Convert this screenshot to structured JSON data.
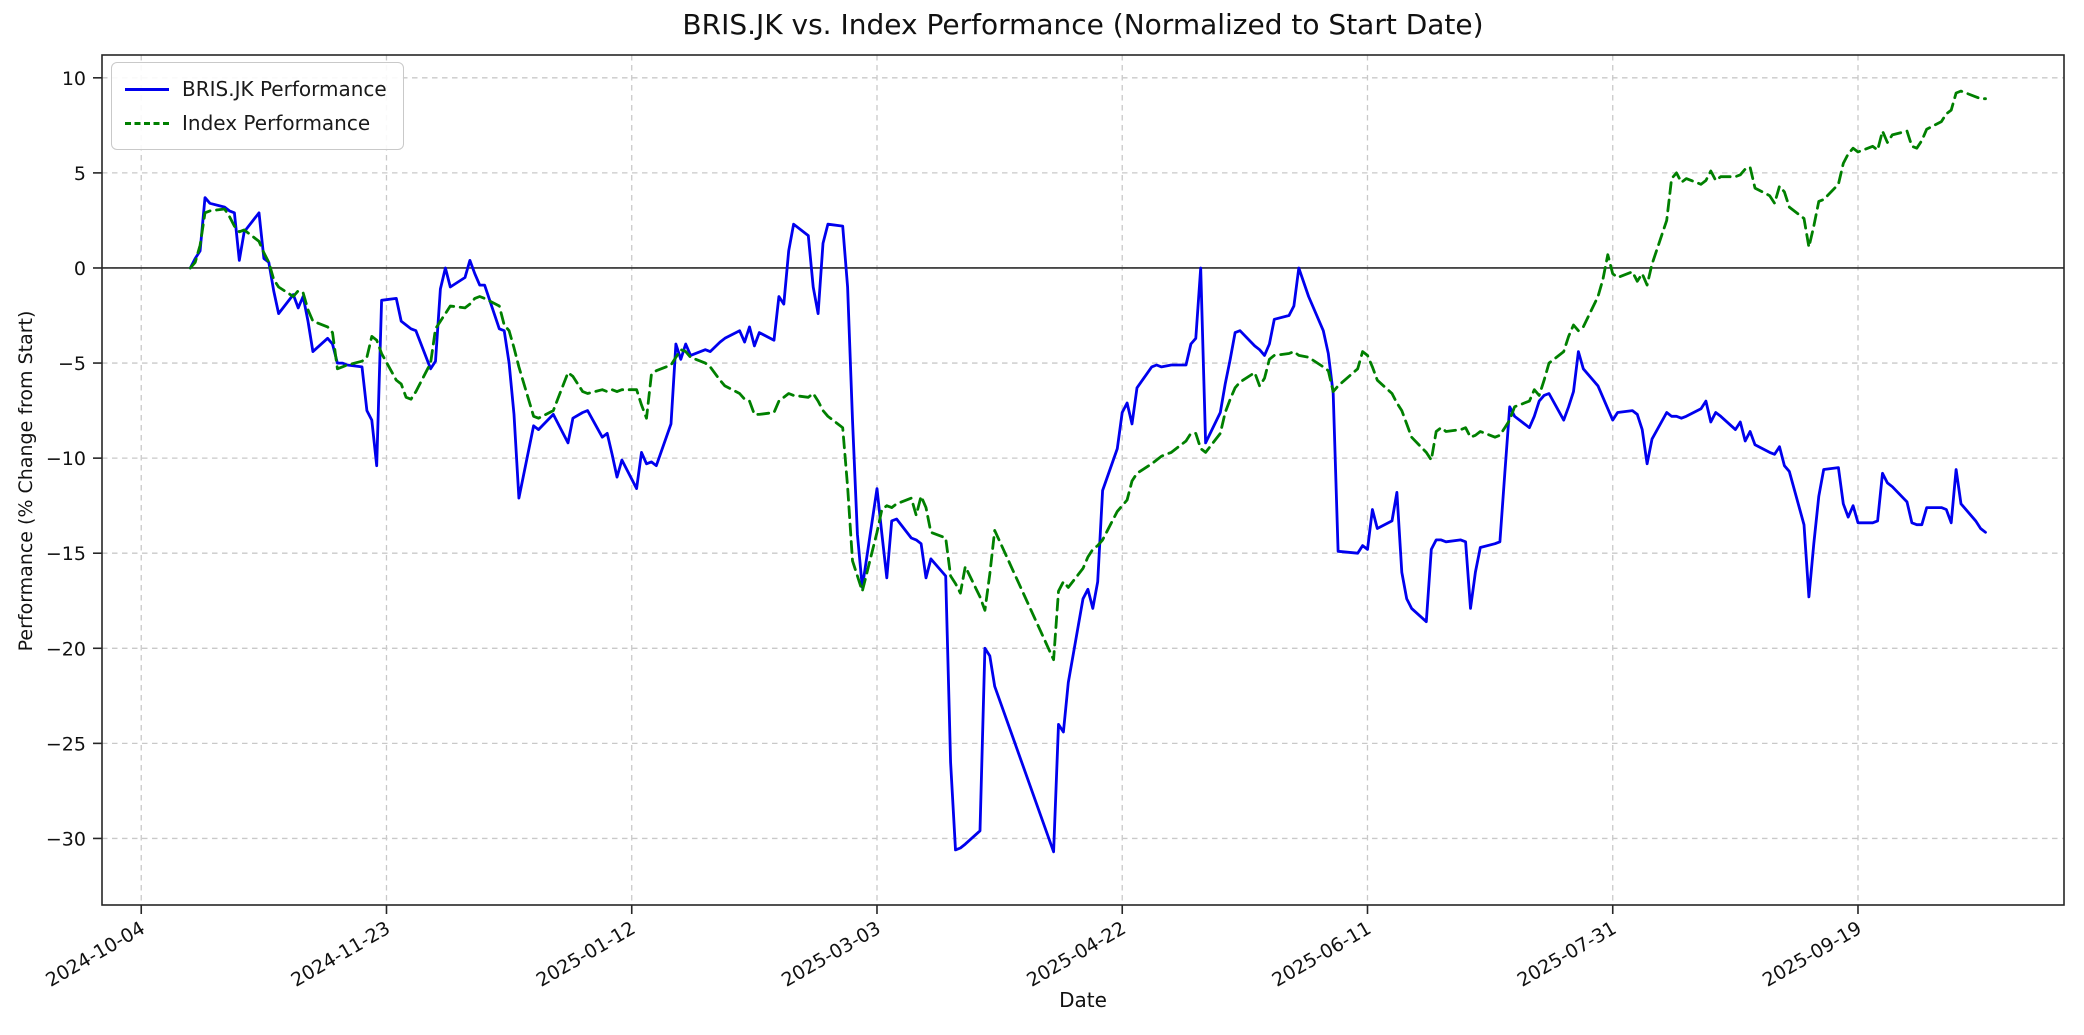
{
  "title": "BRIS.JK vs. Index Performance (Normalized to Start Date)",
  "axes": {
    "xlabel": "Date",
    "ylabel": "Performance (% Change from Start)"
  },
  "legend": {
    "items": [
      {
        "label": "BRIS.JK Performance",
        "color": "#0000ee",
        "style": "solid"
      },
      {
        "label": "Index Performance",
        "color": "#008000",
        "style": "dashed"
      }
    ]
  },
  "chart_data": {
    "type": "line",
    "title": "BRIS.JK vs. Index Performance (Normalized to Start Date)",
    "xlabel": "Date",
    "ylabel": "Performance (% Change from Start)",
    "grid": true,
    "legend_position": "upper-left",
    "zero_line": true,
    "xlim": [
      "2024-09-26",
      "2025-10-31"
    ],
    "ylim": [
      -33.5,
      11.2
    ],
    "x_ticks": [
      "2024-10-04",
      "2024-11-23",
      "2025-01-12",
      "2025-03-03",
      "2025-04-22",
      "2025-06-11",
      "2025-07-31",
      "2025-09-19"
    ],
    "y_ticks": [
      10,
      5,
      0,
      -5,
      -10,
      -15,
      -20,
      -25,
      -30
    ],
    "y_tick_labels": [
      "10",
      "5",
      "0",
      "−5",
      "−10",
      "−15",
      "−20",
      "−25",
      "−30"
    ],
    "x": [
      "2024-10-14",
      "2024-10-15",
      "2024-10-16",
      "2024-10-17",
      "2024-10-18",
      "2024-10-21",
      "2024-10-22",
      "2024-10-23",
      "2024-10-24",
      "2024-10-25",
      "2024-10-28",
      "2024-10-29",
      "2024-10-30",
      "2024-10-31",
      "2024-11-01",
      "2024-11-04",
      "2024-11-05",
      "2024-11-06",
      "2024-11-07",
      "2024-11-08",
      "2024-11-11",
      "2024-11-12",
      "2024-11-13",
      "2024-11-14",
      "2024-11-15",
      "2024-11-18",
      "2024-11-19",
      "2024-11-20",
      "2024-11-21",
      "2024-11-22",
      "2024-11-25",
      "2024-11-26",
      "2024-11-27",
      "2024-11-28",
      "2024-11-29",
      "2024-12-02",
      "2024-12-03",
      "2024-12-04",
      "2024-12-05",
      "2024-12-06",
      "2024-12-09",
      "2024-12-10",
      "2024-12-11",
      "2024-12-12",
      "2024-12-13",
      "2024-12-16",
      "2024-12-17",
      "2024-12-18",
      "2024-12-19",
      "2024-12-20",
      "2024-12-23",
      "2024-12-24",
      "2024-12-27",
      "2024-12-30",
      "2024-12-31",
      "2025-01-02",
      "2025-01-03",
      "2025-01-06",
      "2025-01-07",
      "2025-01-08",
      "2025-01-09",
      "2025-01-10",
      "2025-01-13",
      "2025-01-14",
      "2025-01-15",
      "2025-01-16",
      "2025-01-17",
      "2025-01-20",
      "2025-01-21",
      "2025-01-22",
      "2025-01-23",
      "2025-01-24",
      "2025-01-27",
      "2025-01-28",
      "2025-01-30",
      "2025-01-31",
      "2025-02-03",
      "2025-02-04",
      "2025-02-05",
      "2025-02-06",
      "2025-02-07",
      "2025-02-10",
      "2025-02-11",
      "2025-02-12",
      "2025-02-13",
      "2025-02-14",
      "2025-02-17",
      "2025-02-18",
      "2025-02-19",
      "2025-02-20",
      "2025-02-21",
      "2025-02-24",
      "2025-02-25",
      "2025-02-26",
      "2025-02-27",
      "2025-02-28",
      "2025-03-03",
      "2025-03-04",
      "2025-03-05",
      "2025-03-06",
      "2025-03-07",
      "2025-03-10",
      "2025-03-11",
      "2025-03-12",
      "2025-03-13",
      "2025-03-14",
      "2025-03-17",
      "2025-03-18",
      "2025-03-19",
      "2025-03-20",
      "2025-03-21",
      "2025-03-24",
      "2025-03-25",
      "2025-03-26",
      "2025-03-27",
      "2025-04-08",
      "2025-04-09",
      "2025-04-10",
      "2025-04-11",
      "2025-04-14",
      "2025-04-15",
      "2025-04-16",
      "2025-04-17",
      "2025-04-18",
      "2025-04-21",
      "2025-04-22",
      "2025-04-23",
      "2025-04-24",
      "2025-04-25",
      "2025-04-28",
      "2025-04-29",
      "2025-04-30",
      "2025-05-02",
      "2025-05-05",
      "2025-05-06",
      "2025-05-07",
      "2025-05-08",
      "2025-05-09",
      "2025-05-12",
      "2025-05-13",
      "2025-05-14",
      "2025-05-15",
      "2025-05-16",
      "2025-05-19",
      "2025-05-20",
      "2025-05-21",
      "2025-05-22",
      "2025-05-23",
      "2025-05-26",
      "2025-05-27",
      "2025-05-28",
      "2025-05-30",
      "2025-06-02",
      "2025-06-03",
      "2025-06-04",
      "2025-06-05",
      "2025-06-09",
      "2025-06-10",
      "2025-06-11",
      "2025-06-12",
      "2025-06-13",
      "2025-06-16",
      "2025-06-17",
      "2025-06-18",
      "2025-06-19",
      "2025-06-20",
      "2025-06-23",
      "2025-06-24",
      "2025-06-25",
      "2025-06-26",
      "2025-06-27",
      "2025-06-30",
      "2025-07-01",
      "2025-07-02",
      "2025-07-03",
      "2025-07-04",
      "2025-07-07",
      "2025-07-08",
      "2025-07-09",
      "2025-07-10",
      "2025-07-11",
      "2025-07-14",
      "2025-07-15",
      "2025-07-16",
      "2025-07-17",
      "2025-07-18",
      "2025-07-21",
      "2025-07-22",
      "2025-07-23",
      "2025-07-24",
      "2025-07-25",
      "2025-07-28",
      "2025-07-29",
      "2025-07-30",
      "2025-07-31",
      "2025-08-01",
      "2025-08-04",
      "2025-08-05",
      "2025-08-06",
      "2025-08-07",
      "2025-08-08",
      "2025-08-11",
      "2025-08-12",
      "2025-08-13",
      "2025-08-14",
      "2025-08-15",
      "2025-08-18",
      "2025-08-19",
      "2025-08-20",
      "2025-08-21",
      "2025-08-22",
      "2025-08-25",
      "2025-08-26",
      "2025-08-27",
      "2025-08-28",
      "2025-08-29",
      "2025-09-01",
      "2025-09-02",
      "2025-09-03",
      "2025-09-04",
      "2025-09-05",
      "2025-09-08",
      "2025-09-09",
      "2025-09-10",
      "2025-09-11",
      "2025-09-12",
      "2025-09-15",
      "2025-09-16",
      "2025-09-17",
      "2025-09-18",
      "2025-09-19",
      "2025-09-22",
      "2025-09-23",
      "2025-09-24",
      "2025-09-25",
      "2025-09-26",
      "2025-09-29",
      "2025-09-30",
      "2025-10-01",
      "2025-10-02",
      "2025-10-03",
      "2025-10-06",
      "2025-10-07",
      "2025-10-08",
      "2025-10-09",
      "2025-10-10",
      "2025-10-13",
      "2025-10-14",
      "2025-10-15"
    ],
    "series": [
      {
        "name": "BRIS.JK Performance",
        "color": "#0000ee",
        "line_style": "solid",
        "values": [
          0.0,
          0.5,
          0.9,
          3.7,
          3.4,
          3.2,
          3.0,
          2.9,
          0.4,
          1.9,
          2.9,
          0.5,
          0.3,
          -1.2,
          -2.4,
          -1.4,
          -2.1,
          -1.5,
          -2.8,
          -4.4,
          -3.7,
          -4.0,
          -5.0,
          -5.0,
          -5.1,
          -5.2,
          -7.5,
          -8.0,
          -10.4,
          -1.7,
          -1.6,
          -2.8,
          -3.0,
          -3.2,
          -3.3,
          -5.3,
          -4.9,
          -1.1,
          0.0,
          -1.0,
          -0.5,
          0.4,
          -0.3,
          -0.9,
          -0.9,
          -3.2,
          -3.3,
          -5.0,
          -7.7,
          -12.1,
          -8.3,
          -8.5,
          -7.7,
          -9.2,
          -7.9,
          -7.6,
          -7.5,
          -8.9,
          -8.7,
          -9.8,
          -11.0,
          -10.1,
          -11.6,
          -9.7,
          -10.3,
          -10.2,
          -10.4,
          -8.2,
          -4.0,
          -4.8,
          -4.0,
          -4.6,
          -4.3,
          -4.4,
          -3.9,
          -3.7,
          -3.3,
          -3.9,
          -3.1,
          -4.1,
          -3.4,
          -3.8,
          -1.5,
          -1.9,
          0.9,
          2.3,
          1.7,
          -1.0,
          -2.4,
          1.3,
          2.3,
          2.2,
          -1.0,
          -8.0,
          -14.0,
          -16.8,
          -11.6,
          -14.0,
          -16.3,
          -13.3,
          -13.2,
          -14.2,
          -14.3,
          -14.5,
          -16.3,
          -15.3,
          -16.2,
          -26.0,
          -30.6,
          -30.5,
          -30.3,
          -29.6,
          -20.0,
          -20.4,
          -22.0,
          -30.7,
          -24.0,
          -24.4,
          -21.8,
          -17.4,
          -16.9,
          -17.9,
          -16.5,
          -11.7,
          -9.5,
          -7.6,
          -7.1,
          -8.2,
          -6.3,
          -5.2,
          -5.1,
          -5.2,
          -5.1,
          -5.1,
          -4.0,
          -3.7,
          0.0,
          -9.2,
          -7.6,
          -6.1,
          -4.8,
          -3.4,
          -3.3,
          -4.1,
          -4.3,
          -4.6,
          -4.0,
          -2.7,
          -2.5,
          -2.0,
          0.0,
          -1.5,
          -3.3,
          -4.5,
          -6.6,
          -14.9,
          -15.0,
          -14.6,
          -14.8,
          -12.7,
          -13.7,
          -13.3,
          -11.8,
          -16.0,
          -17.4,
          -17.9,
          -18.6,
          -14.8,
          -14.3,
          -14.3,
          -14.4,
          -14.3,
          -14.4,
          -17.9,
          -16.0,
          -14.7,
          -14.5,
          -14.4,
          -10.8,
          -7.3,
          -7.8,
          -8.4,
          -7.8,
          -7.0,
          -6.7,
          -6.6,
          -8.0,
          -7.3,
          -6.5,
          -4.4,
          -5.3,
          -6.2,
          -6.8,
          -7.4,
          -8.0,
          -7.6,
          -7.5,
          -7.7,
          -8.5,
          -10.3,
          -9.0,
          -7.6,
          -7.8,
          -7.8,
          -7.9,
          -7.8,
          -7.4,
          -7.0,
          -8.1,
          -7.6,
          -7.8,
          -8.5,
          -8.1,
          -9.1,
          -8.6,
          -9.3,
          -9.7,
          -9.8,
          -9.4,
          -10.4,
          -10.7,
          -13.5,
          -17.3,
          -14.5,
          -12.0,
          -10.6,
          -10.5,
          -12.4,
          -13.1,
          -12.5,
          -13.4,
          -13.4,
          -13.3,
          -10.8,
          -11.3,
          -11.5,
          -12.3,
          -13.4,
          -13.5,
          -13.5,
          -12.6,
          -12.6,
          -12.7,
          -13.4,
          -10.6,
          -12.4,
          -13.3,
          -13.7,
          -13.9
        ]
      },
      {
        "name": "Index Performance",
        "color": "#008000",
        "line_style": "dashed",
        "values": [
          0.0,
          0.3,
          1.2,
          2.9,
          3.0,
          3.1,
          2.7,
          2.2,
          1.9,
          2.0,
          1.4,
          0.8,
          0.3,
          -0.6,
          -1.0,
          -1.5,
          -1.2,
          -1.3,
          -2.2,
          -2.8,
          -3.1,
          -3.4,
          -5.3,
          -5.2,
          -5.1,
          -4.9,
          -4.7,
          -3.6,
          -3.8,
          -4.5,
          -5.9,
          -6.1,
          -6.8,
          -6.9,
          -6.5,
          -5.0,
          -3.2,
          -2.8,
          -2.4,
          -2.0,
          -2.1,
          -1.9,
          -1.6,
          -1.5,
          -1.6,
          -2.0,
          -3.0,
          -3.3,
          -4.2,
          -5.2,
          -7.8,
          -7.9,
          -7.5,
          -5.5,
          -5.7,
          -6.5,
          -6.6,
          -6.4,
          -6.5,
          -6.4,
          -6.5,
          -6.4,
          -6.4,
          -7.2,
          -7.9,
          -5.6,
          -5.4,
          -5.1,
          -4.7,
          -4.3,
          -4.4,
          -4.7,
          -5.0,
          -5.2,
          -5.9,
          -6.2,
          -6.6,
          -6.9,
          -7.0,
          -7.7,
          -7.7,
          -7.6,
          -7.0,
          -6.8,
          -6.6,
          -6.7,
          -6.8,
          -6.6,
          -7.0,
          -7.5,
          -7.8,
          -8.4,
          -11.5,
          -15.4,
          -16.2,
          -17.0,
          -13.9,
          -12.7,
          -12.5,
          -12.6,
          -12.4,
          -12.1,
          -13.0,
          -12.0,
          -12.6,
          -13.9,
          -14.2,
          -16.2,
          -16.6,
          -17.1,
          -15.7,
          -17.3,
          -18.0,
          -16.1,
          -13.8,
          -20.6,
          -17.0,
          -16.5,
          -16.8,
          -15.8,
          -15.2,
          -14.8,
          -14.6,
          -14.3,
          -12.8,
          -12.5,
          -12.2,
          -11.2,
          -10.8,
          -10.3,
          -10.1,
          -9.9,
          -9.7,
          -9.1,
          -8.7,
          -8.7,
          -9.5,
          -9.7,
          -8.7,
          -7.6,
          -6.9,
          -6.3,
          -6.0,
          -5.5,
          -6.2,
          -5.8,
          -4.8,
          -4.6,
          -4.5,
          -4.4,
          -4.6,
          -4.7,
          -5.2,
          -5.4,
          -6.5,
          -6.2,
          -5.3,
          -4.4,
          -4.6,
          -5.2,
          -5.9,
          -6.6,
          -7.1,
          -7.5,
          -8.2,
          -8.9,
          -9.7,
          -10.1,
          -8.6,
          -8.4,
          -8.6,
          -8.5,
          -8.4,
          -8.9,
          -8.8,
          -8.6,
          -8.9,
          -8.8,
          -8.4,
          -8.0,
          -7.3,
          -7.0,
          -6.4,
          -6.7,
          -5.9,
          -5.0,
          -4.4,
          -3.6,
          -3.0,
          -3.3,
          -3.1,
          -1.5,
          -0.6,
          0.7,
          -0.3,
          -0.5,
          -0.2,
          -0.7,
          -0.3,
          -0.9,
          0.2,
          2.5,
          4.7,
          5.0,
          4.5,
          4.7,
          4.4,
          4.6,
          5.1,
          4.6,
          4.8,
          4.8,
          4.9,
          5.2,
          5.3,
          4.2,
          3.8,
          3.4,
          4.3,
          4.0,
          3.2,
          2.6,
          1.1,
          2.2,
          3.5,
          3.6,
          4.4,
          5.5,
          6.0,
          6.3,
          6.1,
          6.4,
          6.2,
          7.2,
          6.6,
          7.0,
          7.2,
          6.4,
          6.3,
          6.7,
          7.3,
          7.7,
          8.1,
          8.3,
          9.2,
          9.3,
          9.0,
          8.9,
          8.9
        ]
      }
    ]
  }
}
